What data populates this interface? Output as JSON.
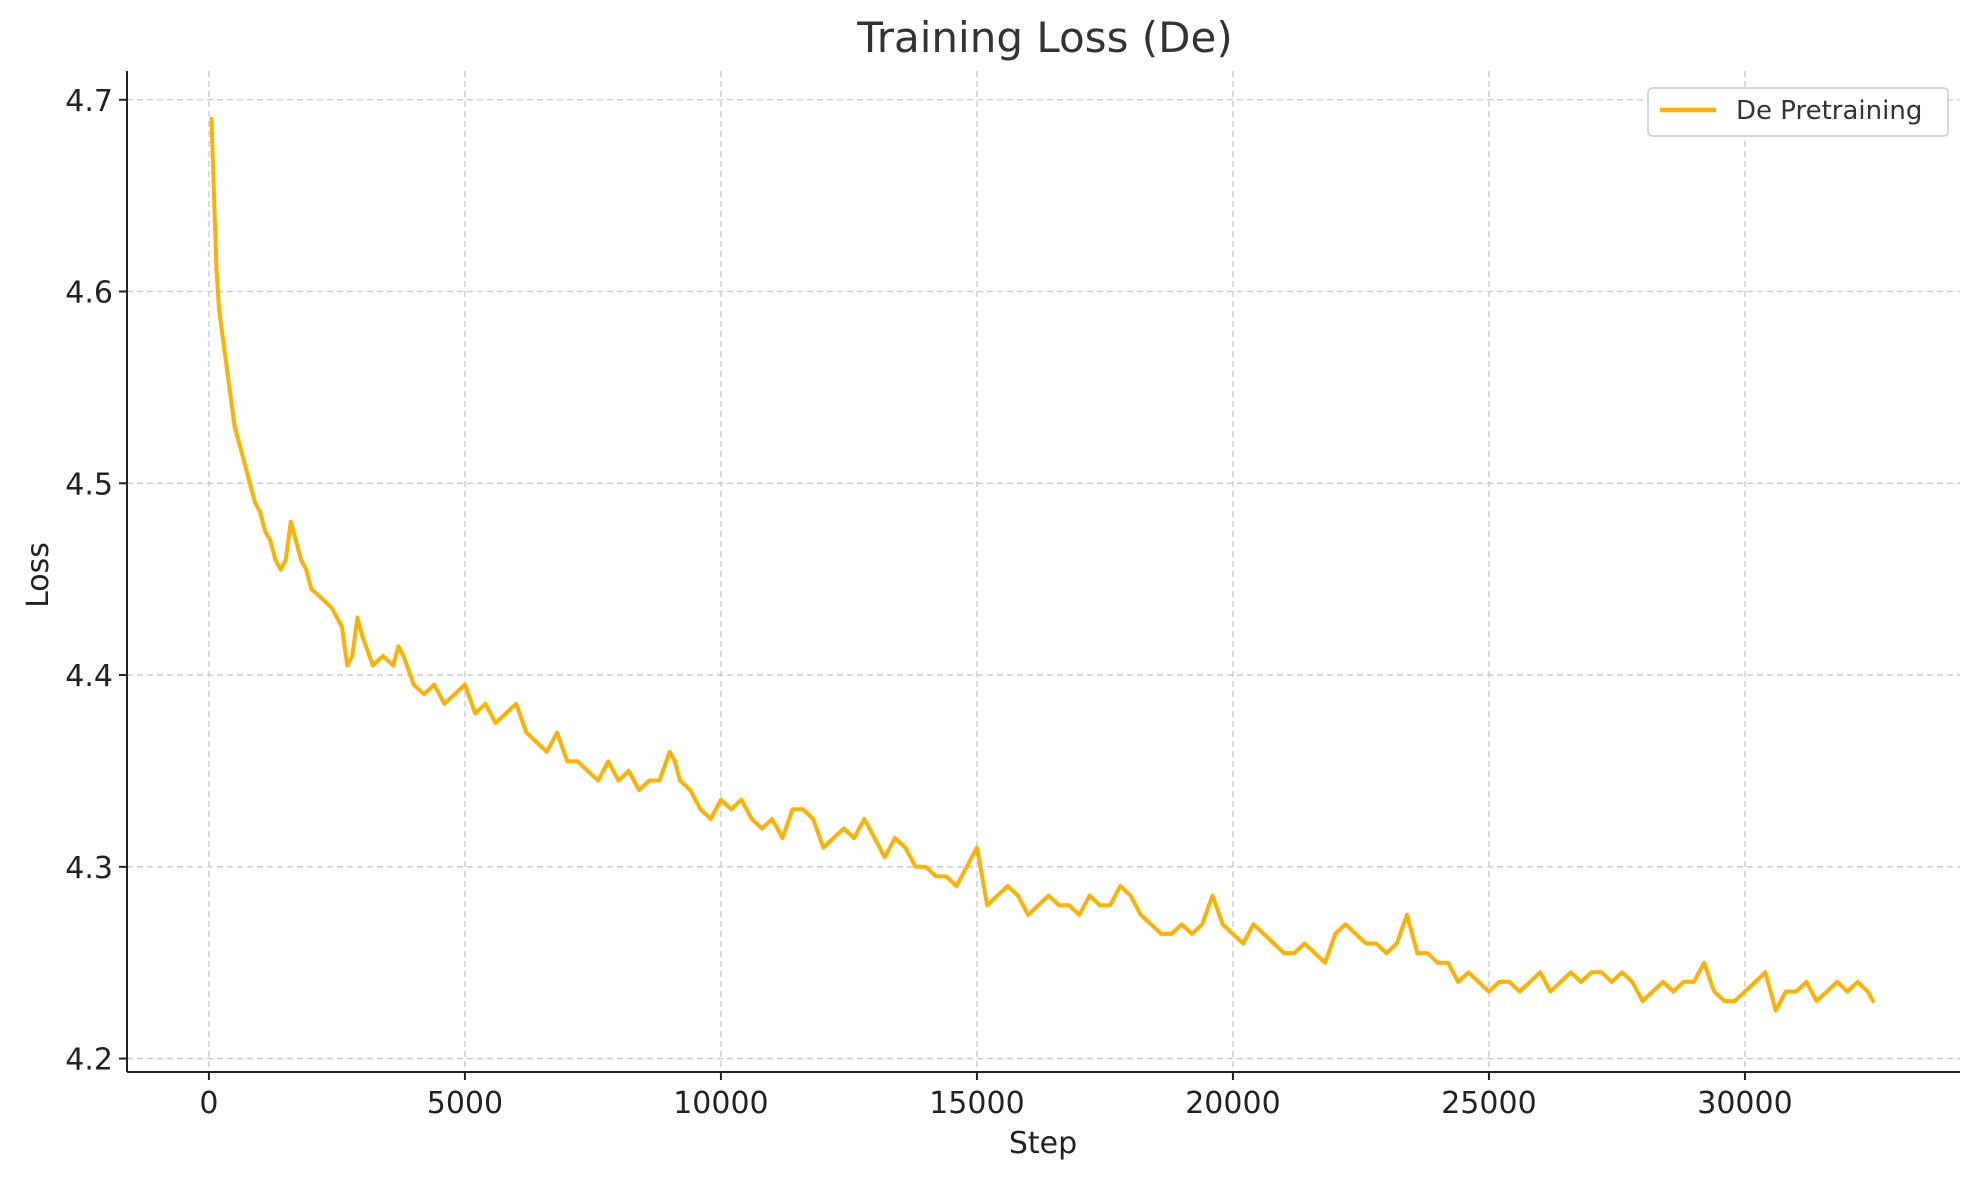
{
  "chart_data": {
    "type": "line",
    "title": "Training Loss (De)",
    "xlabel": "Step",
    "ylabel": "Loss",
    "xlim": [
      -1600,
      34200
    ],
    "ylim": [
      4.193,
      4.715
    ],
    "x_ticks": [
      0,
      5000,
      10000,
      15000,
      20000,
      25000,
      30000
    ],
    "y_ticks": [
      4.2,
      4.3,
      4.4,
      4.5,
      4.6,
      4.7
    ],
    "grid": true,
    "legend": {
      "placement": "top-right"
    },
    "series": [
      {
        "name": "De Pretraining",
        "color": "#FFB000",
        "x": [
          50,
          100,
          150,
          200,
          300,
          400,
          500,
          600,
          700,
          800,
          900,
          1000,
          1100,
          1200,
          1300,
          1400,
          1500,
          1600,
          1700,
          1800,
          1900,
          2000,
          2200,
          2400,
          2600,
          2700,
          2800,
          2900,
          3000,
          3200,
          3400,
          3600,
          3700,
          3800,
          4000,
          4200,
          4400,
          4600,
          4800,
          5000,
          5200,
          5400,
          5600,
          5800,
          6000,
          6200,
          6400,
          6600,
          6800,
          7000,
          7200,
          7400,
          7600,
          7800,
          8000,
          8200,
          8400,
          8600,
          8800,
          9000,
          9100,
          9200,
          9400,
          9600,
          9800,
          10000,
          10200,
          10400,
          10600,
          10800,
          11000,
          11200,
          11400,
          11600,
          11800,
          12000,
          12200,
          12400,
          12600,
          12800,
          13000,
          13200,
          13400,
          13600,
          13800,
          14000,
          14200,
          14400,
          14600,
          14800,
          15000,
          15200,
          15400,
          15600,
          15800,
          16000,
          16200,
          16400,
          16600,
          16800,
          17000,
          17200,
          17400,
          17600,
          17800,
          18000,
          18200,
          18400,
          18600,
          18800,
          19000,
          19200,
          19400,
          19600,
          19800,
          20000,
          20200,
          20400,
          20600,
          20800,
          21000,
          21200,
          21400,
          21600,
          21800,
          22000,
          22200,
          22400,
          22600,
          22800,
          23000,
          23200,
          23400,
          23600,
          23800,
          24000,
          24200,
          24400,
          24600,
          24800,
          25000,
          25200,
          25400,
          25600,
          25800,
          26000,
          26200,
          26400,
          26600,
          26800,
          27000,
          27200,
          27400,
          27600,
          27800,
          28000,
          28200,
          28400,
          28600,
          28800,
          29000,
          29200,
          29400,
          29600,
          29800,
          30000,
          30200,
          30400,
          30600,
          30800,
          31000,
          31200,
          31400,
          31600,
          31800,
          32000,
          32200,
          32400,
          32500
        ],
        "y": [
          4.69,
          4.65,
          4.61,
          4.59,
          4.57,
          4.55,
          4.53,
          4.52,
          4.51,
          4.5,
          4.49,
          4.485,
          4.475,
          4.47,
          4.46,
          4.455,
          4.46,
          4.48,
          4.47,
          4.46,
          4.455,
          4.445,
          4.44,
          4.435,
          4.425,
          4.405,
          4.41,
          4.43,
          4.42,
          4.405,
          4.41,
          4.405,
          4.415,
          4.41,
          4.395,
          4.39,
          4.395,
          4.385,
          4.39,
          4.395,
          4.38,
          4.385,
          4.375,
          4.38,
          4.385,
          4.37,
          4.365,
          4.36,
          4.37,
          4.355,
          4.355,
          4.35,
          4.345,
          4.355,
          4.345,
          4.35,
          4.34,
          4.345,
          4.345,
          4.36,
          4.355,
          4.345,
          4.34,
          4.33,
          4.325,
          4.335,
          4.33,
          4.335,
          4.325,
          4.32,
          4.325,
          4.315,
          4.33,
          4.33,
          4.325,
          4.31,
          4.315,
          4.32,
          4.315,
          4.325,
          4.315,
          4.305,
          4.315,
          4.31,
          4.3,
          4.3,
          4.295,
          4.295,
          4.29,
          4.3,
          4.31,
          4.28,
          4.285,
          4.29,
          4.285,
          4.275,
          4.28,
          4.285,
          4.28,
          4.28,
          4.275,
          4.285,
          4.28,
          4.28,
          4.29,
          4.285,
          4.275,
          4.27,
          4.265,
          4.265,
          4.27,
          4.265,
          4.27,
          4.285,
          4.27,
          4.265,
          4.26,
          4.27,
          4.265,
          4.26,
          4.255,
          4.255,
          4.26,
          4.255,
          4.25,
          4.265,
          4.27,
          4.265,
          4.26,
          4.26,
          4.255,
          4.26,
          4.275,
          4.255,
          4.255,
          4.25,
          4.25,
          4.24,
          4.245,
          4.24,
          4.235,
          4.24,
          4.24,
          4.235,
          4.24,
          4.245,
          4.235,
          4.24,
          4.245,
          4.24,
          4.245,
          4.245,
          4.24,
          4.245,
          4.24,
          4.23,
          4.235,
          4.24,
          4.235,
          4.24,
          4.24,
          4.25,
          4.235,
          4.23,
          4.23,
          4.235,
          4.24,
          4.245,
          4.225,
          4.235,
          4.235,
          4.24,
          4.23,
          4.235,
          4.24,
          4.235,
          4.24,
          4.235,
          4.23
        ]
      }
    ]
  }
}
